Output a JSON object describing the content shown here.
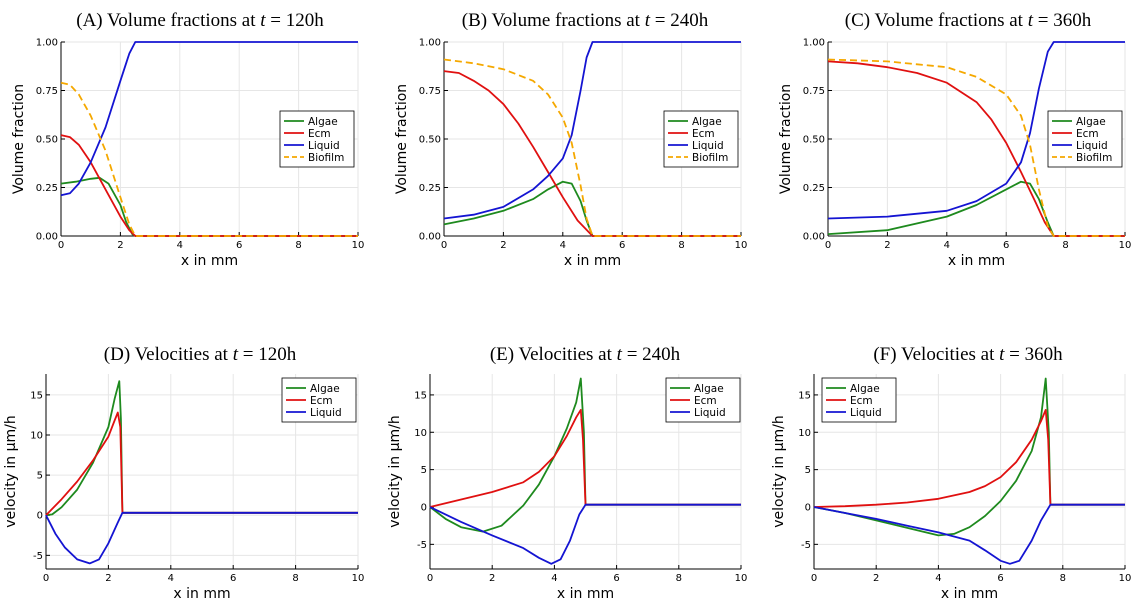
{
  "colors": {
    "Algae": "#1e8a1e",
    "Ecm": "#e01010",
    "Liquid": "#1414d2",
    "Biofilm": "#f5a800"
  },
  "chart_data": [
    {
      "type": "line",
      "title_prefix": "(A) Volume fractions at ",
      "title_var": "t",
      "title_suffix": " = 120h",
      "xlabel": "x in mm",
      "ylabel": "Volume fraction",
      "xlim": [
        0,
        10
      ],
      "ylim": [
        0,
        1
      ],
      "xticks": [
        0,
        2,
        4,
        6,
        8,
        10
      ],
      "yticks": [
        0,
        0.25,
        0.5,
        0.75,
        1.0
      ],
      "ytick_labels": [
        "0.00",
        "0.25",
        "0.50",
        "0.75",
        "1.00"
      ],
      "grid": true,
      "legend": "right",
      "series": [
        {
          "name": "Algae",
          "style": "solid",
          "x": [
            0,
            0.5,
            1.0,
            1.3,
            1.6,
            2.0,
            2.2,
            2.4,
            2.5,
            10
          ],
          "y": [
            0.27,
            0.28,
            0.295,
            0.3,
            0.27,
            0.16,
            0.07,
            0.01,
            0,
            0
          ]
        },
        {
          "name": "Ecm",
          "style": "solid",
          "x": [
            0,
            0.3,
            0.6,
            1.0,
            1.5,
            2.0,
            2.3,
            2.5,
            10
          ],
          "y": [
            0.52,
            0.51,
            0.47,
            0.38,
            0.24,
            0.1,
            0.03,
            0,
            0
          ]
        },
        {
          "name": "Liquid",
          "style": "solid",
          "x": [
            0,
            0.3,
            0.6,
            1.0,
            1.5,
            2.0,
            2.3,
            2.5,
            10
          ],
          "y": [
            0.21,
            0.22,
            0.27,
            0.38,
            0.56,
            0.8,
            0.94,
            1.0,
            1.0
          ]
        },
        {
          "name": "Biofilm",
          "style": "dashed",
          "x": [
            0,
            0.3,
            0.6,
            1.0,
            1.5,
            2.0,
            2.3,
            2.5,
            10
          ],
          "y": [
            0.79,
            0.78,
            0.73,
            0.62,
            0.44,
            0.2,
            0.06,
            0,
            0
          ]
        }
      ]
    },
    {
      "type": "line",
      "title_prefix": "(B) Volume fractions at ",
      "title_var": "t",
      "title_suffix": " = 240h",
      "xlabel": "x in mm",
      "ylabel": "Volume fraction",
      "xlim": [
        0,
        10
      ],
      "ylim": [
        0,
        1
      ],
      "xticks": [
        0,
        2,
        4,
        6,
        8,
        10
      ],
      "yticks": [
        0,
        0.25,
        0.5,
        0.75,
        1.0
      ],
      "ytick_labels": [
        "0.00",
        "0.25",
        "0.50",
        "0.75",
        "1.00"
      ],
      "grid": true,
      "legend": "right",
      "series": [
        {
          "name": "Algae",
          "style": "solid",
          "x": [
            0,
            1,
            2,
            3,
            3.5,
            4.0,
            4.3,
            4.6,
            4.8,
            5.0,
            10
          ],
          "y": [
            0.06,
            0.09,
            0.13,
            0.19,
            0.24,
            0.28,
            0.27,
            0.18,
            0.08,
            0,
            0
          ]
        },
        {
          "name": "Ecm",
          "style": "solid",
          "x": [
            0,
            0.5,
            1,
            1.5,
            2,
            2.5,
            3,
            3.5,
            4,
            4.5,
            5.0,
            10
          ],
          "y": [
            0.85,
            0.84,
            0.8,
            0.75,
            0.68,
            0.58,
            0.46,
            0.33,
            0.2,
            0.08,
            0,
            0
          ]
        },
        {
          "name": "Liquid",
          "style": "solid",
          "x": [
            0,
            1,
            2,
            3,
            3.5,
            4,
            4.3,
            4.6,
            4.8,
            5.0,
            10
          ],
          "y": [
            0.09,
            0.11,
            0.15,
            0.24,
            0.31,
            0.4,
            0.52,
            0.75,
            0.92,
            1.0,
            1.0
          ]
        },
        {
          "name": "Biofilm",
          "style": "dashed",
          "x": [
            0,
            1,
            2,
            3,
            3.5,
            4,
            4.3,
            4.6,
            4.8,
            5.0,
            10
          ],
          "y": [
            0.91,
            0.89,
            0.86,
            0.8,
            0.73,
            0.61,
            0.48,
            0.26,
            0.09,
            0,
            0
          ]
        }
      ]
    },
    {
      "type": "line",
      "title_prefix": "(C) Volume fractions at ",
      "title_var": "t",
      "title_suffix": " = 360h",
      "xlabel": "x in mm",
      "ylabel": "Volume fraction",
      "xlim": [
        0,
        10
      ],
      "ylim": [
        0,
        1
      ],
      "xticks": [
        0,
        2,
        4,
        6,
        8,
        10
      ],
      "yticks": [
        0,
        0.25,
        0.5,
        0.75,
        1.0
      ],
      "ytick_labels": [
        "0.00",
        "0.25",
        "0.50",
        "0.75",
        "1.00"
      ],
      "grid": true,
      "legend": "right",
      "series": [
        {
          "name": "Algae",
          "style": "solid",
          "x": [
            0,
            2,
            4,
            5,
            6,
            6.5,
            6.8,
            7.1,
            7.4,
            7.6,
            10
          ],
          "y": [
            0.01,
            0.03,
            0.1,
            0.16,
            0.24,
            0.28,
            0.27,
            0.19,
            0.07,
            0,
            0
          ]
        },
        {
          "name": "Ecm",
          "style": "solid",
          "x": [
            0,
            1,
            2,
            3,
            4,
            5,
            5.5,
            6,
            6.5,
            7,
            7.3,
            7.6,
            10
          ],
          "y": [
            0.9,
            0.89,
            0.87,
            0.84,
            0.79,
            0.69,
            0.6,
            0.48,
            0.33,
            0.17,
            0.07,
            0,
            0
          ]
        },
        {
          "name": "Liquid",
          "style": "solid",
          "x": [
            0,
            2,
            4,
            5,
            6,
            6.5,
            6.8,
            7.1,
            7.4,
            7.6,
            10
          ],
          "y": [
            0.09,
            0.1,
            0.13,
            0.18,
            0.27,
            0.38,
            0.53,
            0.76,
            0.95,
            1.0,
            1.0
          ]
        },
        {
          "name": "Biofilm",
          "style": "dashed",
          "x": [
            0,
            2,
            4,
            5,
            6,
            6.5,
            6.8,
            7.1,
            7.4,
            7.6,
            10
          ],
          "y": [
            0.91,
            0.9,
            0.87,
            0.82,
            0.73,
            0.62,
            0.47,
            0.24,
            0.05,
            0,
            0
          ]
        }
      ]
    },
    {
      "type": "line",
      "title_prefix": "(D) Velocities at ",
      "title_var": "t",
      "title_suffix": " = 120h",
      "xlabel": "x in mm",
      "ylabel": "velocity in µm/h",
      "xlim": [
        0,
        10
      ],
      "ylim": [
        -6.7,
        17.6
      ],
      "xticks": [
        0,
        2,
        4,
        6,
        8,
        10
      ],
      "yticks": [
        -5,
        0,
        5,
        10,
        15
      ],
      "ytick_labels": [
        "-5",
        "0",
        "5",
        "10",
        "15"
      ],
      "grid": true,
      "legend": "top-right",
      "series": [
        {
          "name": "Algae",
          "style": "solid",
          "x": [
            0,
            0.2,
            0.5,
            1.0,
            1.5,
            2.0,
            2.2,
            2.35,
            2.4,
            2.45,
            10
          ],
          "y": [
            0,
            0.1,
            1.0,
            3.2,
            6.5,
            11.0,
            14.5,
            16.7,
            12.0,
            0.3,
            0.3
          ]
        },
        {
          "name": "Ecm",
          "style": "solid",
          "x": [
            0,
            0.5,
            1.0,
            1.5,
            2.0,
            2.2,
            2.3,
            2.38,
            2.42,
            2.45,
            10
          ],
          "y": [
            0,
            2.0,
            4.2,
            6.8,
            9.8,
            11.8,
            12.8,
            11.0,
            5.0,
            0.3,
            0.3
          ]
        },
        {
          "name": "Liquid",
          "style": "solid",
          "x": [
            0,
            0.3,
            0.6,
            1.0,
            1.4,
            1.7,
            2.0,
            2.3,
            2.45,
            10
          ],
          "y": [
            0,
            -2.3,
            -4.0,
            -5.5,
            -6.0,
            -5.5,
            -3.5,
            -0.9,
            0.3,
            0.3
          ]
        }
      ]
    },
    {
      "type": "line",
      "title_prefix": "(E) Velocities at ",
      "title_var": "t",
      "title_suffix": " = 240h",
      "xlabel": "x in mm",
      "ylabel": "velocity in µm/h",
      "xlim": [
        0,
        10
      ],
      "ylim": [
        -8.3,
        17.8
      ],
      "xticks": [
        0,
        2,
        4,
        6,
        8,
        10
      ],
      "yticks": [
        -5,
        0,
        5,
        10,
        15
      ],
      "ytick_labels": [
        "-5",
        "0",
        "5",
        "10",
        "15"
      ],
      "grid": true,
      "legend": "top-right",
      "series": [
        {
          "name": "Algae",
          "style": "solid",
          "x": [
            0,
            0.5,
            1.0,
            1.7,
            2.3,
            3.0,
            3.5,
            4.0,
            4.4,
            4.7,
            4.85,
            4.95,
            5.0,
            10
          ],
          "y": [
            0,
            -1.6,
            -2.7,
            -3.3,
            -2.5,
            0.2,
            3.0,
            6.8,
            10.5,
            14.0,
            17.2,
            10.0,
            0.3,
            0.3
          ]
        },
        {
          "name": "Ecm",
          "style": "solid",
          "x": [
            0,
            1,
            2,
            3,
            3.5,
            4.0,
            4.4,
            4.7,
            4.85,
            4.92,
            5.0,
            10
          ],
          "y": [
            0,
            1.0,
            2.0,
            3.3,
            4.7,
            6.8,
            9.5,
            12.0,
            13.0,
            9.0,
            0.3,
            0.3
          ]
        },
        {
          "name": "Liquid",
          "style": "solid",
          "x": [
            0,
            1,
            2,
            3,
            3.5,
            3.9,
            4.2,
            4.5,
            4.8,
            5.0,
            10
          ],
          "y": [
            0,
            -2.0,
            -3.8,
            -5.5,
            -6.8,
            -7.6,
            -7.0,
            -4.5,
            -1.0,
            0.3,
            0.3
          ]
        }
      ]
    },
    {
      "type": "line",
      "title_prefix": "(F) Velocities at ",
      "title_var": "t",
      "title_suffix": " = 360h",
      "xlabel": "x in mm",
      "ylabel": "velocity in µm/h",
      "xlim": [
        0,
        10
      ],
      "ylim": [
        -8.3,
        17.8
      ],
      "xticks": [
        0,
        2,
        4,
        6,
        8,
        10
      ],
      "yticks": [
        -5,
        0,
        5,
        10,
        15
      ],
      "ytick_labels": [
        "-5",
        "0",
        "5",
        "10",
        "15"
      ],
      "grid": true,
      "legend": "top-left",
      "series": [
        {
          "name": "Algae",
          "style": "solid",
          "x": [
            0,
            1,
            2,
            3,
            4.0,
            4.5,
            5.0,
            5.5,
            6.0,
            6.5,
            7.0,
            7.3,
            7.45,
            7.55,
            7.6,
            10
          ],
          "y": [
            0,
            -0.8,
            -1.8,
            -2.8,
            -3.8,
            -3.6,
            -2.7,
            -1.2,
            0.8,
            3.5,
            7.5,
            12.0,
            17.2,
            10.0,
            0.3,
            0.3
          ]
        },
        {
          "name": "Ecm",
          "style": "solid",
          "x": [
            0,
            1,
            2,
            3,
            4,
            5,
            5.5,
            6,
            6.5,
            7,
            7.3,
            7.45,
            7.53,
            7.6,
            10
          ],
          "y": [
            0,
            0.1,
            0.3,
            0.6,
            1.1,
            2.0,
            2.8,
            4.0,
            6.0,
            9.0,
            11.5,
            13.0,
            9.0,
            0.3,
            0.3
          ]
        },
        {
          "name": "Liquid",
          "style": "solid",
          "x": [
            0,
            1,
            2,
            3,
            4,
            5,
            5.5,
            6.0,
            6.3,
            6.6,
            7.0,
            7.3,
            7.6,
            10
          ],
          "y": [
            0,
            -0.8,
            -1.6,
            -2.5,
            -3.4,
            -4.5,
            -5.8,
            -7.2,
            -7.6,
            -7.2,
            -4.5,
            -1.8,
            0.3,
            0.3
          ]
        }
      ]
    }
  ]
}
